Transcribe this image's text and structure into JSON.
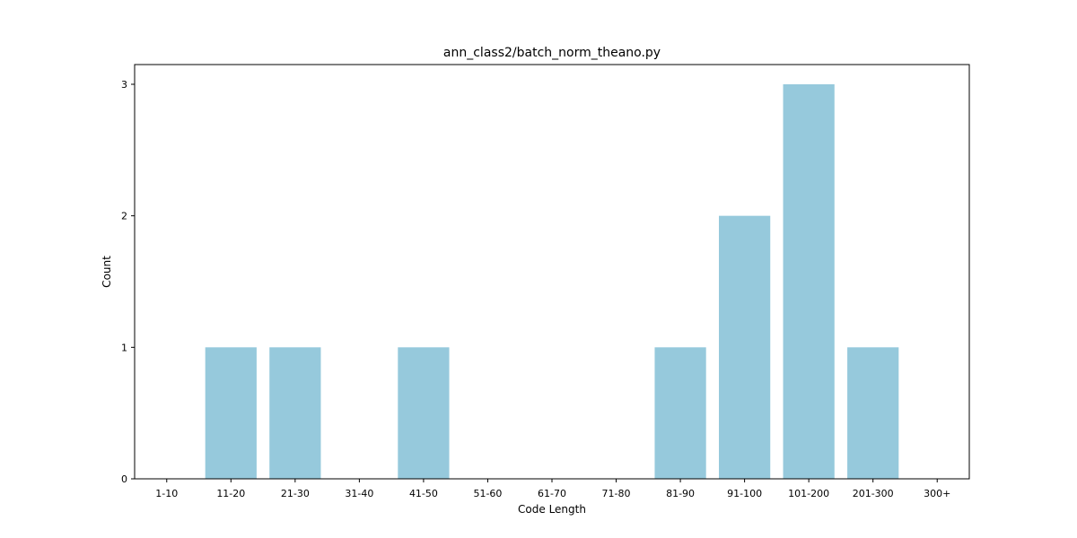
{
  "chart_data": {
    "type": "bar",
    "title": "ann_class2/batch_norm_theano.py",
    "xlabel": "Code Length",
    "ylabel": "Count",
    "categories": [
      "1-10",
      "11-20",
      "21-30",
      "31-40",
      "41-50",
      "51-60",
      "61-70",
      "71-80",
      "81-90",
      "91-100",
      "101-200",
      "201-300",
      "300+"
    ],
    "values": [
      0,
      1,
      1,
      0,
      1,
      0,
      0,
      0,
      1,
      2,
      3,
      1,
      0
    ],
    "ylim": [
      0,
      3.15
    ],
    "yticks": [
      0,
      1,
      2,
      3
    ],
    "bar_color": "#96c9dc",
    "grid": false,
    "legend": "none"
  }
}
